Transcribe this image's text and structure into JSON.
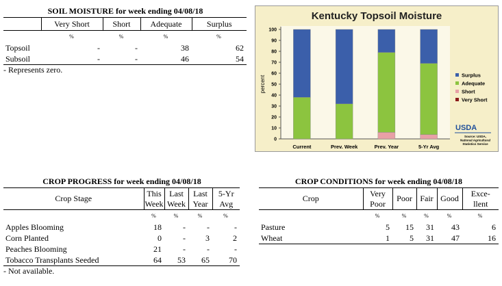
{
  "soil_moisture": {
    "title": "SOIL MOISTURE for week ending 04/08/18",
    "columns": [
      "Very Short",
      "Short",
      "Adequate",
      "Surplus"
    ],
    "units": [
      "%",
      "%",
      "%",
      "%"
    ],
    "rows": [
      {
        "label": "Topsoil",
        "values": [
          "-",
          "-",
          38,
          62
        ]
      },
      {
        "label": "Subsoil",
        "values": [
          "-",
          "-",
          46,
          54
        ]
      }
    ],
    "note": "- Represents zero."
  },
  "chart_data": {
    "type": "stacked_bar",
    "title": "Kentucky Topsoil Moisture",
    "y_label": "percent",
    "categories": [
      "Current",
      "Prev. Week",
      "Prev. Year",
      "5-Yr Avg"
    ],
    "series": [
      {
        "name": "Very Short",
        "color": "#8b1a1a",
        "values": [
          0,
          0,
          0,
          0
        ]
      },
      {
        "name": "Short",
        "color": "#e8a0a6",
        "values": [
          0,
          0,
          6,
          4
        ]
      },
      {
        "name": "Adequate",
        "color": "#8cc43f",
        "values": [
          38,
          32,
          73,
          65
        ]
      },
      {
        "name": "Surplus",
        "color": "#3b5faa",
        "values": [
          62,
          68,
          21,
          31
        ]
      }
    ],
    "ylim": [
      0,
      100
    ],
    "yticks": [
      0,
      10,
      20,
      30,
      40,
      50,
      60,
      70,
      80,
      90,
      100
    ],
    "grid": false,
    "legend": "right",
    "logo": "USDA",
    "source": [
      "Source: USDA,",
      "National Agricultural",
      "Statistics Service"
    ]
  },
  "crop_progress": {
    "title": "CROP PROGRESS for week ending 04/08/18",
    "stub_header": "Crop Stage",
    "columns": [
      "This Week",
      "Last Week",
      "Last Year",
      "5-Yr Avg"
    ],
    "units": [
      "%",
      "%",
      "%",
      "%"
    ],
    "rows": [
      {
        "label": "Apples Blooming",
        "values": [
          18,
          "-",
          "-",
          "-"
        ]
      },
      {
        "label": "Corn Planted",
        "values": [
          0,
          "-",
          3,
          2
        ]
      },
      {
        "label": "Peaches Blooming",
        "values": [
          21,
          "-",
          "-",
          "-"
        ]
      },
      {
        "label": "Tobacco Transplants Seeded",
        "values": [
          64,
          53,
          65,
          70
        ]
      }
    ],
    "note": "- Not available."
  },
  "crop_conditions": {
    "title": "CROP CONDITIONS for week ending 04/08/18",
    "stub_header": "Crop",
    "columns": [
      "Very Poor",
      "Poor",
      "Fair",
      "Good",
      "Exce-\nllent"
    ],
    "units": [
      "%",
      "%",
      "%",
      "%",
      "%"
    ],
    "rows": [
      {
        "label": "Pasture",
        "values": [
          5,
          15,
          31,
          43,
          6
        ]
      },
      {
        "label": "Wheat",
        "values": [
          1,
          5,
          31,
          47,
          16
        ]
      }
    ]
  }
}
